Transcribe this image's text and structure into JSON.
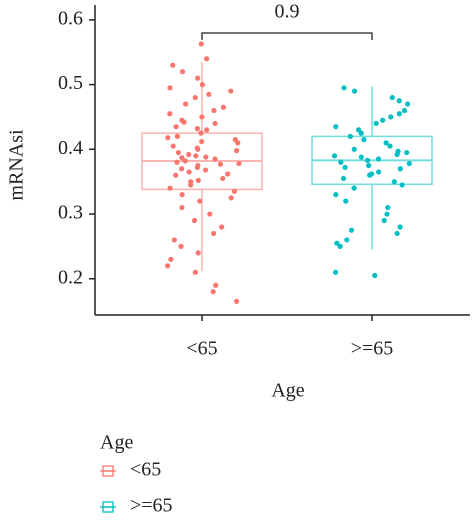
{
  "chart_data": {
    "type": "box",
    "y_label": "mRNAsi",
    "x_label": "Age",
    "annotation": "0.9",
    "legend_title": "Age",
    "categories": [
      "<65",
      ">=65"
    ],
    "ylim": [
      0.144,
      0.623
    ],
    "yticks": [
      0.2,
      0.3,
      0.4,
      0.5,
      0.6
    ],
    "series": [
      {
        "name": "<65",
        "color": "#F8766D",
        "q1": 0.338,
        "median": 0.382,
        "q3": 0.425,
        "whisker_low": 0.212,
        "whisker_high": 0.535,
        "points": [
          0.563,
          0.54,
          0.53,
          0.52,
          0.51,
          0.5,
          0.495,
          0.49,
          0.485,
          0.48,
          0.47,
          0.465,
          0.46,
          0.455,
          0.45,
          0.445,
          0.44,
          0.435,
          0.43,
          0.425,
          0.42,
          0.418,
          0.415,
          0.41,
          0.405,
          0.4,
          0.398,
          0.395,
          0.39,
          0.388,
          0.385,
          0.382,
          0.38,
          0.378,
          0.375,
          0.37,
          0.368,
          0.365,
          0.36,
          0.355,
          0.35,
          0.345,
          0.34,
          0.335,
          0.33,
          0.325,
          0.32,
          0.31,
          0.3,
          0.29,
          0.28,
          0.27,
          0.26,
          0.25,
          0.24,
          0.23,
          0.22,
          0.21,
          0.19,
          0.18,
          0.165,
          0.392,
          0.402,
          0.412,
          0.372,
          0.362,
          0.352,
          0.432,
          0.442,
          0.387,
          0.377
        ]
      },
      {
        "name": ">=65",
        "color": "#00BFC4",
        "q1": 0.346,
        "median": 0.383,
        "q3": 0.42,
        "whisker_low": 0.245,
        "whisker_high": 0.497,
        "points": [
          0.495,
          0.49,
          0.48,
          0.475,
          0.47,
          0.46,
          0.455,
          0.45,
          0.445,
          0.44,
          0.435,
          0.43,
          0.425,
          0.42,
          0.415,
          0.41,
          0.405,
          0.4,
          0.395,
          0.39,
          0.388,
          0.385,
          0.383,
          0.38,
          0.378,
          0.375,
          0.37,
          0.365,
          0.36,
          0.355,
          0.35,
          0.345,
          0.34,
          0.33,
          0.32,
          0.31,
          0.3,
          0.29,
          0.28,
          0.275,
          0.27,
          0.26,
          0.255,
          0.25,
          0.21,
          0.205,
          0.392,
          0.397,
          0.372,
          0.362
        ]
      }
    ]
  }
}
